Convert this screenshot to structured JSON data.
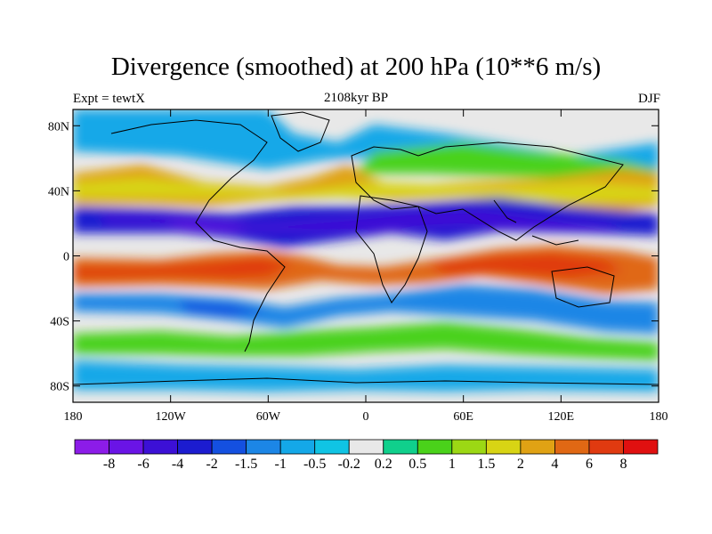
{
  "map": {
    "title": "Divergence (smoothed) at 200 hPa (10**6 m/s)",
    "left_label": "Expt = tewtX",
    "center_label": "2108kyr BP",
    "right_label": "DJF",
    "lat_ticks": [
      "80N",
      "40N",
      "0",
      "40S",
      "80S"
    ],
    "lon_ticks": [
      "180",
      "120W",
      "60W",
      "0",
      "60E",
      "120E",
      "180"
    ],
    "lat_tick_values": [
      80,
      40,
      0,
      -40,
      -80
    ],
    "lon_tick_values": [
      -180,
      -120,
      -60,
      0,
      60,
      120,
      180
    ],
    "projection": "cylindrical-equidistant",
    "lon_range": [
      -180,
      180
    ],
    "lat_range": [
      -90,
      90
    ]
  },
  "colorbar": {
    "labels": [
      "-8",
      "-6",
      "-4",
      "-2",
      "-1.5",
      "-1",
      "-0.5",
      "-0.2",
      "0.2",
      "0.5",
      "1",
      "1.5",
      "2",
      "4",
      "6",
      "8"
    ],
    "colors": [
      "#8c1ce8",
      "#6a14e6",
      "#3c10d6",
      "#1c1cd0",
      "#1450e0",
      "#1c86e6",
      "#14a8e8",
      "#10c4e4",
      "#e8e8e8",
      "#10d08c",
      "#4ad21a",
      "#9cd814",
      "#d8d414",
      "#e0a214",
      "#e06814",
      "#e03a10",
      "#e01010"
    ]
  }
}
